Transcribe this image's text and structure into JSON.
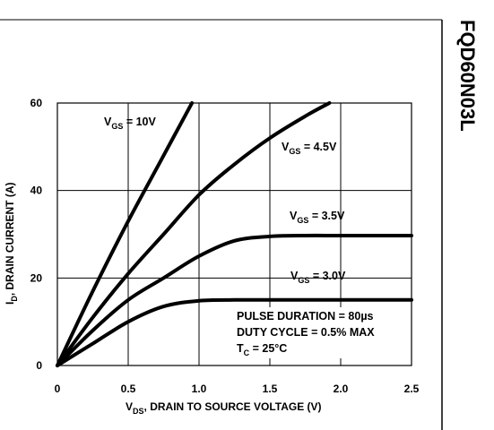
{
  "part_number": "FQD60N03L",
  "chart_data": {
    "type": "line",
    "xlabel": {
      "main": "V",
      "sub": "DS",
      "rest": ", DRAIN TO SOURCE VOLTAGE (V)"
    },
    "ylabel": {
      "main": "I",
      "sub": "D",
      "rest": ", DRAIN CURRENT (A)"
    },
    "xlim": [
      0,
      2.5
    ],
    "ylim": [
      0,
      60
    ],
    "xticks": [
      "0",
      "0.5",
      "1.0",
      "1.5",
      "2.0",
      "2.5"
    ],
    "yticks": [
      "0",
      "20",
      "40",
      "60"
    ],
    "grid": true,
    "series": [
      {
        "name": "VGS = 10V",
        "label": {
          "main": "V",
          "sub": "GS",
          "rest": " = 10V"
        },
        "x": [
          0,
          0.25,
          0.5,
          0.75,
          0.95
        ],
        "y": [
          0,
          17,
          33,
          48,
          60
        ]
      },
      {
        "name": "VGS = 4.5V",
        "label": {
          "main": "V",
          "sub": "GS",
          "rest": " = 4.5V"
        },
        "x": [
          0,
          0.25,
          0.5,
          0.75,
          1.0,
          1.25,
          1.5,
          1.75,
          1.92
        ],
        "y": [
          0,
          11,
          21,
          30,
          39,
          46,
          52,
          57,
          60
        ]
      },
      {
        "name": "VGS = 3.5V",
        "label": {
          "main": "V",
          "sub": "GS",
          "rest": " = 3.5V"
        },
        "x": [
          0,
          0.25,
          0.5,
          0.75,
          1.0,
          1.25,
          1.5,
          1.75,
          2.0,
          2.5
        ],
        "y": [
          0,
          8,
          15,
          20,
          25,
          28.5,
          29.5,
          29.7,
          29.7,
          29.7
        ]
      },
      {
        "name": "VGS = 3.0V",
        "label": {
          "main": "V",
          "sub": "GS",
          "rest": " = 3.0V"
        },
        "x": [
          0,
          0.25,
          0.5,
          0.75,
          1.0,
          1.25,
          1.5,
          2.0,
          2.5
        ],
        "y": [
          0,
          5,
          10,
          13.5,
          14.8,
          15,
          15,
          15,
          15
        ]
      }
    ],
    "annotations": [
      {
        "main": "PULSE DURATION = 80",
        "sub": "",
        "rest": "µs"
      },
      {
        "main": "DUTY CYCLE = 0.5% MAX",
        "sub": "",
        "rest": ""
      },
      {
        "main": "T",
        "sub": "C",
        "rest": " = 25°C"
      }
    ]
  }
}
